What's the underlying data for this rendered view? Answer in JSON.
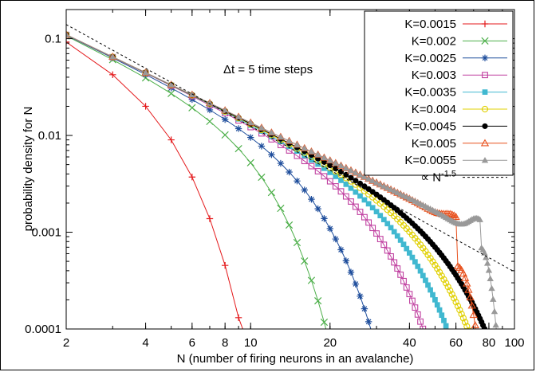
{
  "chart_data": {
    "type": "line",
    "xlabel": "N (number of firing neurons in an avalanche)",
    "ylabel": "probability density for N",
    "xscale": "log",
    "yscale": "log",
    "xlim": [
      2,
      100
    ],
    "ylim": [
      0.0001,
      0.2
    ],
    "x_ticks": [
      "2",
      "4",
      "6",
      "8",
      "10",
      "20",
      "40",
      "60",
      "80",
      "100"
    ],
    "x_tick_values": [
      2,
      4,
      6,
      8,
      10,
      20,
      40,
      60,
      80,
      100
    ],
    "y_ticks": [
      "0.1",
      "0.01",
      "0.001",
      "0.0001"
    ],
    "y_tick_values": [
      0.1,
      0.01,
      0.001,
      0.0001
    ],
    "annotation": "Δt = 5 time steps",
    "legend_position": "top-right",
    "grid": false,
    "series": [
      {
        "name": "K=0.0015",
        "color": "#e41a1c",
        "marker": "plus",
        "cutoff": 7.5,
        "end": 0.0001,
        "bump": 0,
        "peak": 0
      },
      {
        "name": "K=0.002",
        "color": "#4daf4a",
        "marker": "cross",
        "cutoff": 14,
        "end": 0.0001,
        "bump": 0,
        "peak": 0
      },
      {
        "name": "K=0.0025",
        "color": "#1f4e9c",
        "marker": "star",
        "cutoff": 22,
        "end": 0.0001,
        "bump": 0,
        "peak": 0
      },
      {
        "name": "K=0.003",
        "color": "#c040a0",
        "marker": "square-open",
        "cutoff": 31,
        "end": 0.0001,
        "bump": 0,
        "peak": 0
      },
      {
        "name": "K=0.0035",
        "color": "#40b8d0",
        "marker": "square-filled",
        "cutoff": 40,
        "end": 0.0001,
        "bump": 0,
        "peak": 0
      },
      {
        "name": "K=0.004",
        "color": "#e0d000",
        "marker": "circle-open",
        "cutoff": 50,
        "end": 0.0001,
        "bump": 0,
        "peak": 0
      },
      {
        "name": "K=0.0045",
        "color": "#000000",
        "marker": "circle-filled",
        "cutoff": 60,
        "end": 0.0001,
        "bump": 0,
        "peak": 0
      },
      {
        "name": "K=0.005",
        "color": "#e8501c",
        "marker": "triangle-open",
        "cutoff": 70,
        "end": 0.0001,
        "bump": 0.00045,
        "peak": 60
      },
      {
        "name": "K=0.0055",
        "color": "#999999",
        "marker": "triangle-filled",
        "cutoff": 82,
        "end": 0.00013,
        "bump": 0.0007,
        "peak": 74
      }
    ],
    "reference": {
      "name": "∝ N",
      "exponent_label": "-1.5",
      "style": "dashed",
      "color": "#000000",
      "x": [
        2,
        100
      ],
      "y": [
        0.14,
        0.00039
      ]
    }
  }
}
